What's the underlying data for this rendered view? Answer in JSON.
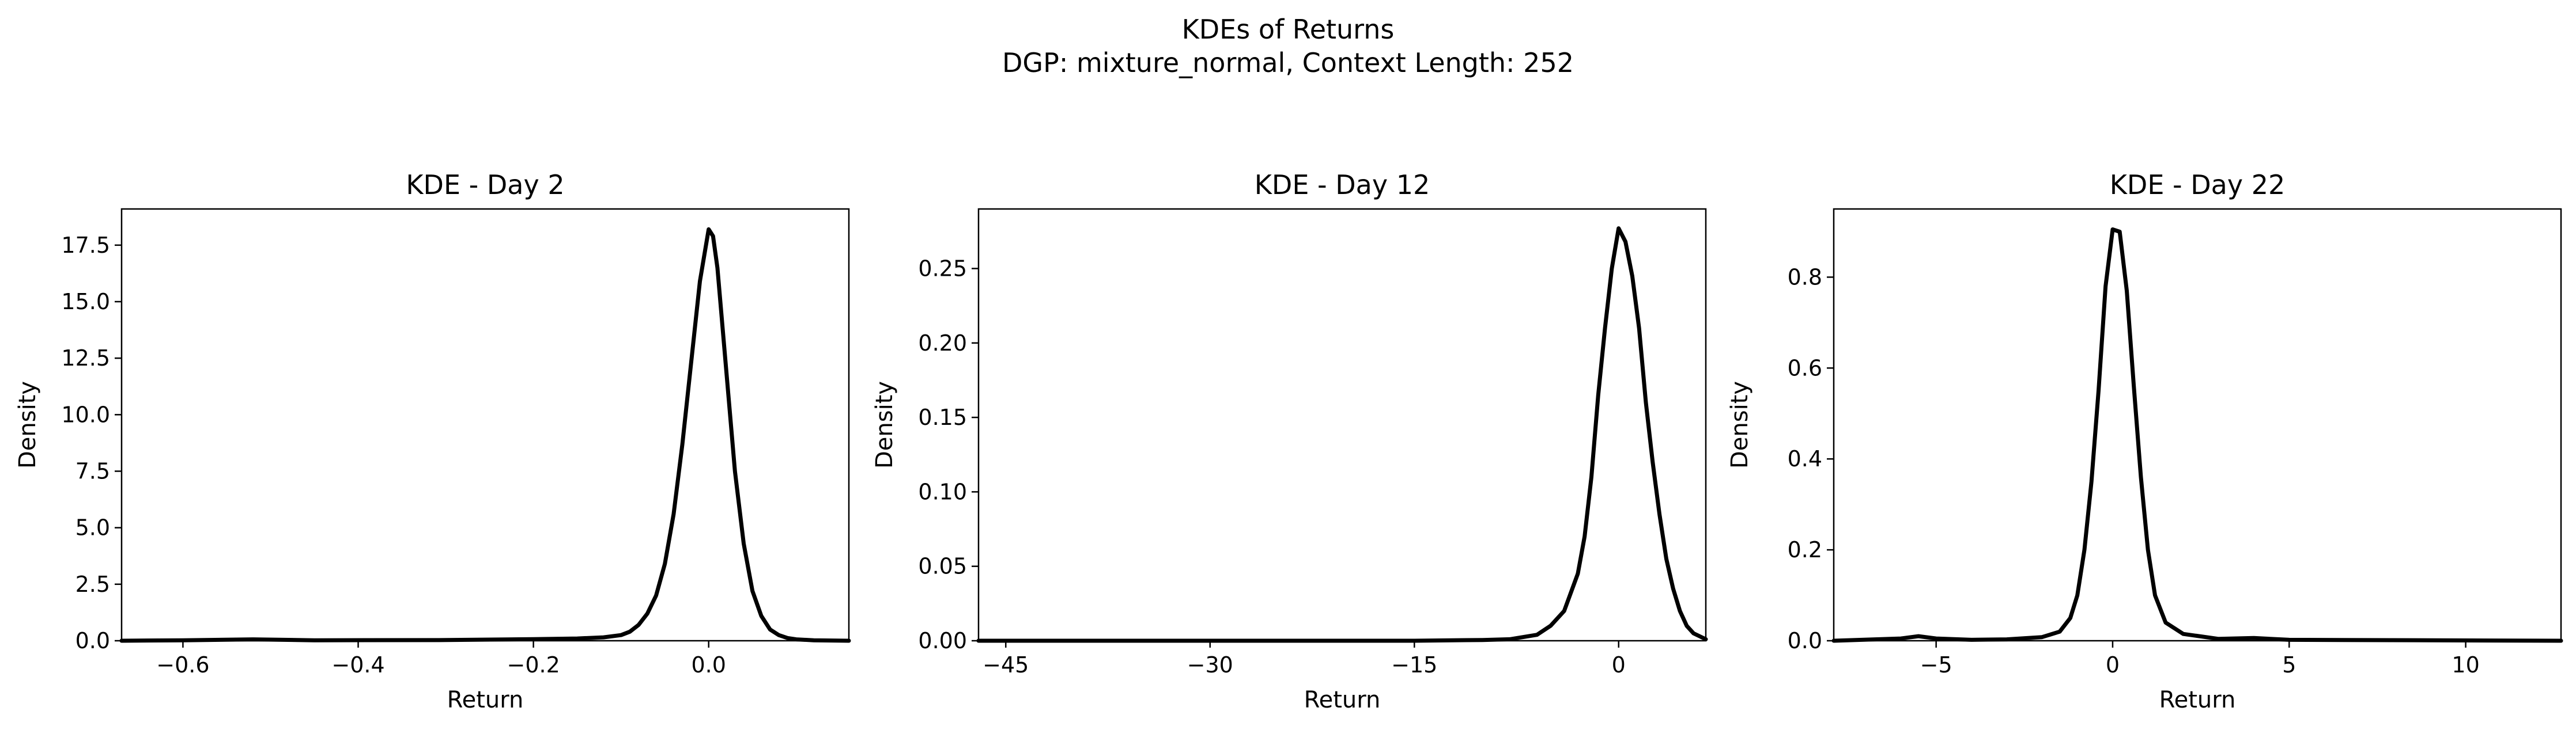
{
  "figure": {
    "title": "KDEs of Returns",
    "subtitle": "DGP: mixture_normal, Context Length: 252"
  },
  "chart_data": [
    {
      "type": "line",
      "title": "KDE - Day 2",
      "xlabel": "Return",
      "ylabel": "Density",
      "xlim": [
        -0.67,
        0.16
      ],
      "ylim": [
        0,
        19.1
      ],
      "xticks": [
        -0.6,
        -0.4,
        -0.2,
        0.0
      ],
      "xtick_labels": [
        "−0.6",
        "−0.4",
        "−0.2",
        "0.0"
      ],
      "yticks": [
        0,
        2.5,
        5,
        7.5,
        10,
        12.5,
        15,
        17.5
      ],
      "ytick_labels": [
        "0.0",
        "2.5",
        "5.0",
        "7.5",
        "10.0",
        "12.5",
        "15.0",
        "17.5"
      ],
      "line_color": "#000000",
      "grid": false,
      "series": [
        {
          "x": [
            -0.67,
            -0.6,
            -0.52,
            -0.45,
            -0.3,
            -0.2,
            -0.15,
            -0.12,
            -0.1,
            -0.09,
            -0.08,
            -0.07,
            -0.06,
            -0.05,
            -0.04,
            -0.03,
            -0.02,
            -0.01,
            0.0,
            0.005,
            0.01,
            0.02,
            0.03,
            0.04,
            0.05,
            0.06,
            0.07,
            0.08,
            0.09,
            0.1,
            0.12,
            0.16
          ],
          "y": [
            0.0,
            0.02,
            0.06,
            0.02,
            0.03,
            0.07,
            0.1,
            0.15,
            0.25,
            0.4,
            0.7,
            1.2,
            2.0,
            3.4,
            5.6,
            8.7,
            12.3,
            15.9,
            18.2,
            17.9,
            16.5,
            12.0,
            7.5,
            4.3,
            2.2,
            1.1,
            0.5,
            0.25,
            0.12,
            0.06,
            0.02,
            0.0
          ]
        }
      ]
    },
    {
      "type": "line",
      "title": "KDE - Day 12",
      "xlabel": "Return",
      "ylabel": "Density",
      "xlim": [
        -47,
        6.4
      ],
      "ylim": [
        0,
        0.29
      ],
      "xticks": [
        -45,
        -30,
        -15,
        0
      ],
      "xtick_labels": [
        "−45",
        "−30",
        "−15",
        "0"
      ],
      "yticks": [
        0,
        0.05,
        0.1,
        0.15,
        0.2,
        0.25
      ],
      "ytick_labels": [
        "0.00",
        "0.05",
        "0.10",
        "0.15",
        "0.20",
        "0.25"
      ],
      "line_color": "#000000",
      "grid": false,
      "series": [
        {
          "x": [
            -47,
            -30,
            -15,
            -10,
            -8,
            -6,
            -5,
            -4,
            -3,
            -2.5,
            -2,
            -1.5,
            -1,
            -0.5,
            0.0,
            0.5,
            1.0,
            1.5,
            2.0,
            2.5,
            3.0,
            3.5,
            4.0,
            4.5,
            5.0,
            5.5,
            6.4
          ],
          "y": [
            0.0,
            0.0,
            0.0,
            0.0005,
            0.001,
            0.004,
            0.01,
            0.02,
            0.045,
            0.07,
            0.11,
            0.165,
            0.21,
            0.25,
            0.277,
            0.268,
            0.245,
            0.21,
            0.16,
            0.12,
            0.085,
            0.055,
            0.035,
            0.02,
            0.01,
            0.005,
            0.001
          ]
        }
      ]
    },
    {
      "type": "line",
      "title": "KDE - Day 22",
      "xlabel": "Return",
      "ylabel": "Density",
      "xlim": [
        -7.9,
        12.7
      ],
      "ylim": [
        0,
        0.95
      ],
      "xticks": [
        -5,
        0,
        5,
        10
      ],
      "xtick_labels": [
        "−5",
        "0",
        "5",
        "10"
      ],
      "yticks": [
        0,
        0.2,
        0.4,
        0.6,
        0.8
      ],
      "ytick_labels": [
        "0.0",
        "0.2",
        "0.4",
        "0.6",
        "0.8"
      ],
      "line_color": "#000000",
      "grid": false,
      "series": [
        {
          "x": [
            -7.9,
            -6,
            -5.5,
            -5,
            -4,
            -3,
            -2,
            -1.5,
            -1.2,
            -1.0,
            -0.8,
            -0.6,
            -0.4,
            -0.2,
            0.0,
            0.2,
            0.4,
            0.6,
            0.8,
            1.0,
            1.2,
            1.5,
            2.0,
            3.0,
            4.0,
            5.0,
            12.7
          ],
          "y": [
            0.0,
            0.005,
            0.01,
            0.005,
            0.002,
            0.003,
            0.008,
            0.02,
            0.05,
            0.1,
            0.2,
            0.35,
            0.55,
            0.78,
            0.905,
            0.9,
            0.77,
            0.56,
            0.36,
            0.2,
            0.1,
            0.04,
            0.015,
            0.004,
            0.006,
            0.002,
            0.0
          ]
        }
      ]
    }
  ]
}
